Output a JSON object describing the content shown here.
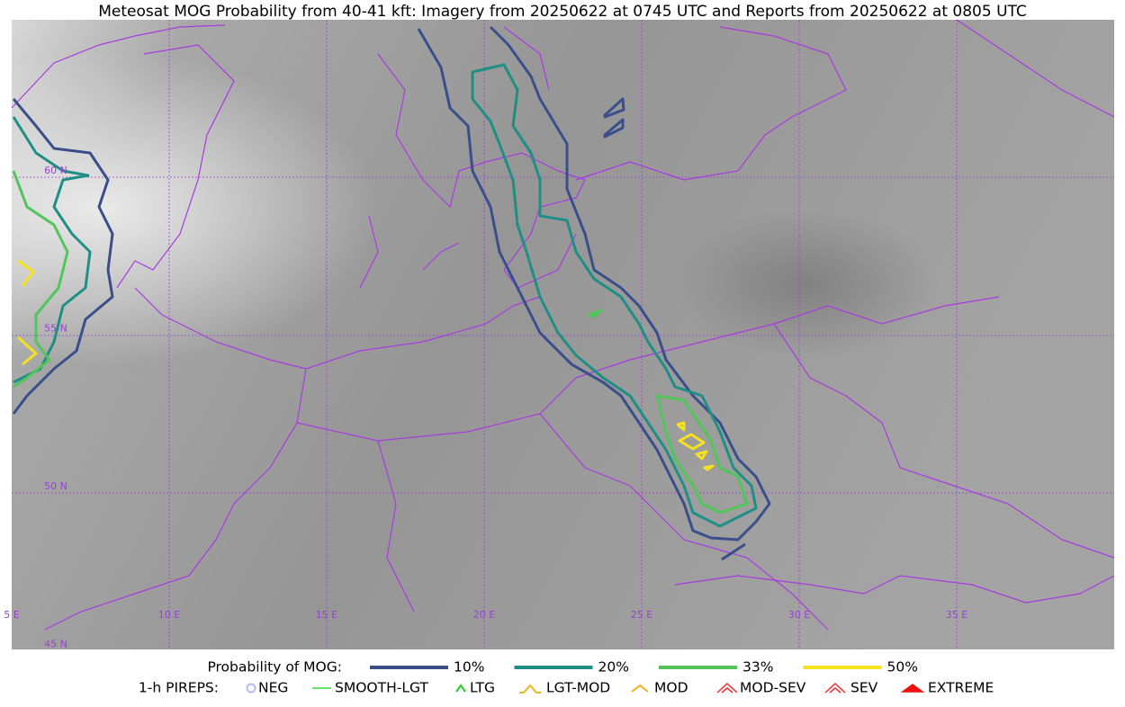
{
  "title": "Meteosat MOG Probability from 40-41 kft: Imagery from 20250622 at 0745 UTC and Reports from 20250622 at 0805 UTC",
  "map": {
    "lon_labels": [
      "5 E",
      "10 E",
      "15 E",
      "20 E",
      "25 E",
      "30 E",
      "35 E"
    ],
    "lat_labels": [
      "60 N",
      "55 N",
      "50 N",
      "45 N"
    ]
  },
  "legend": {
    "probability": {
      "label": "Probability of MOG:",
      "items": [
        {
          "label": "10%",
          "color": "#3a4e8c"
        },
        {
          "label": "20%",
          "color": "#1f8f86"
        },
        {
          "label": "33%",
          "color": "#52c55a"
        },
        {
          "label": "50%",
          "color": "#f5e11e"
        }
      ]
    },
    "pireps": {
      "label": "1-h PIREPS:",
      "items": [
        {
          "label": "NEG",
          "color": "#b8b8f0"
        },
        {
          "label": "SMOOTH-LGT",
          "color": "#33dd33"
        },
        {
          "label": "LTG",
          "color": "#22cc22"
        },
        {
          "label": "LGT-MOD",
          "color": "#f0b020"
        },
        {
          "label": "MOD",
          "color": "#f0b020"
        },
        {
          "label": "MOD-SEV",
          "color": "#ee3333"
        },
        {
          "label": "SEV",
          "color": "#ee3333"
        },
        {
          "label": "EXTREME",
          "color": "#ee1111"
        }
      ]
    }
  }
}
